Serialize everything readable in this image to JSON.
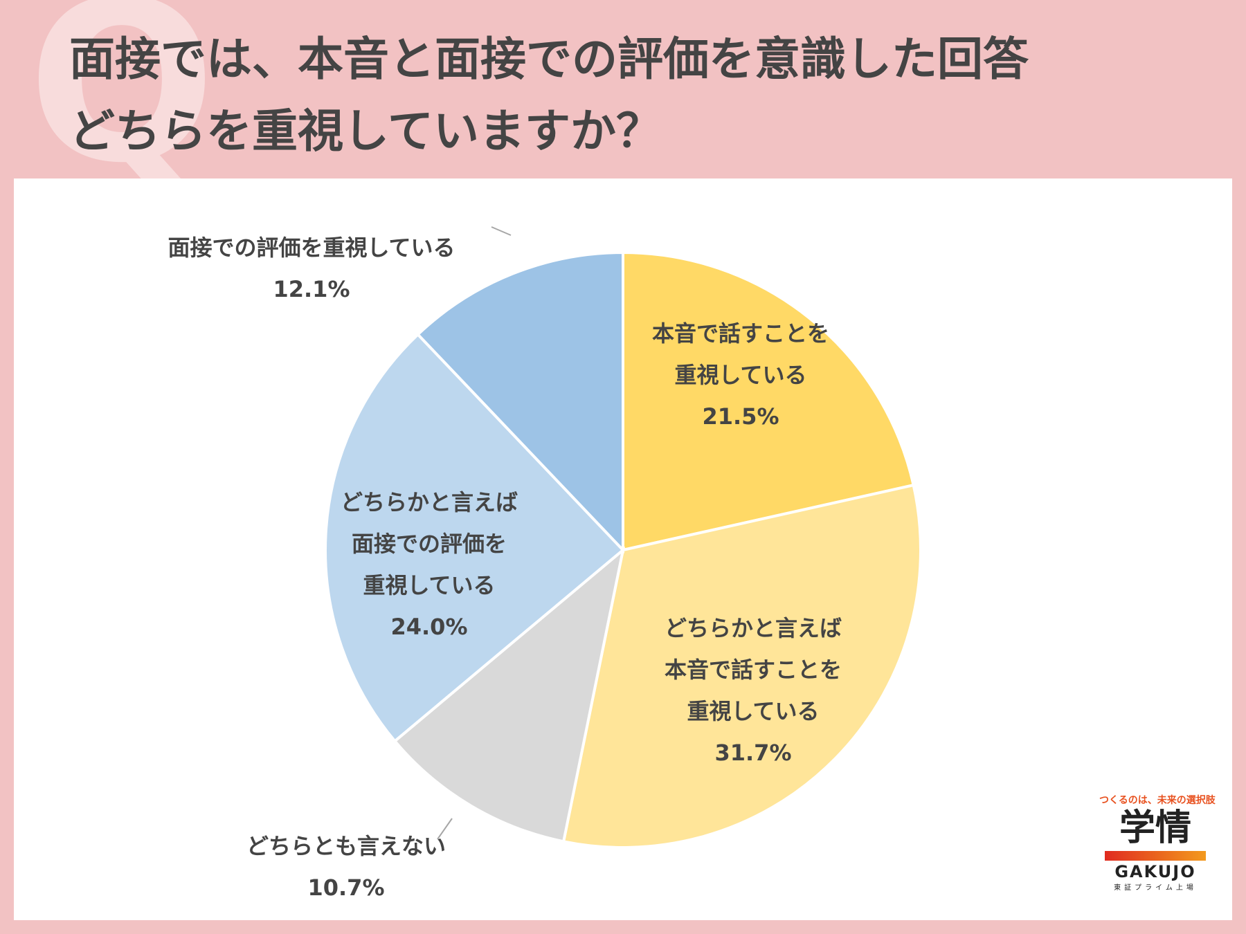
{
  "title": {
    "line1": "面接では、本音と面接での評価を意識した回答",
    "line2": "どちらを重視していますか？"
  },
  "q_mark": "Q",
  "chart_data": {
    "type": "pie",
    "start_angle_deg": 0,
    "direction": "clockwise",
    "slices": [
      {
        "label_lines": [
          "本音で話すことを",
          "重視している"
        ],
        "value": 21.5,
        "value_text": "21.5%",
        "color": "#ffd966"
      },
      {
        "label_lines": [
          "どちらかと言えば",
          "本音で話すことを",
          "重視している"
        ],
        "value": 31.7,
        "value_text": "31.7%",
        "color": "#ffe599"
      },
      {
        "label_lines": [
          "どちらとも言えない"
        ],
        "value": 10.7,
        "value_text": "10.7%",
        "color": "#d9d9d9"
      },
      {
        "label_lines": [
          "どちらかと言えば",
          "面接での評価を",
          "重視している"
        ],
        "value": 24.0,
        "value_text": "24.0%",
        "color": "#bdd7ee"
      },
      {
        "label_lines": [
          "面接での評価を重視している"
        ],
        "value": 12.1,
        "value_text": "12.1%",
        "color": "#9dc3e6"
      }
    ]
  },
  "brand": {
    "tagline": "つくるのは、未来の選択肢",
    "name_kanji": "学情",
    "name_en": "GAKUJO",
    "listing": "東証プライム上場"
  }
}
